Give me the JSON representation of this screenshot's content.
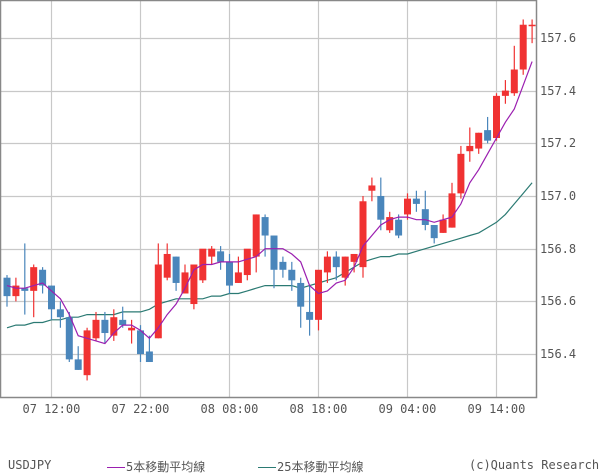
{
  "chart_data": {
    "type": "candlestick",
    "title": "USDJPY",
    "symbol": "USDJPY",
    "xlabel": "",
    "ylabel": "",
    "ylim": [
      156.22,
      157.74
    ],
    "y_ticks": [
      156.4,
      156.6,
      156.8,
      157.0,
      157.2,
      157.4,
      157.6
    ],
    "y_tick_labels": [
      "156.4",
      "156.6",
      "156.8",
      "157.0",
      "157.2",
      "157.4",
      "157.6"
    ],
    "x_ticks": [
      {
        "index": 5,
        "label": "07 12:00"
      },
      {
        "index": 15,
        "label": "07 22:00"
      },
      {
        "index": 25,
        "label": "08 08:00"
      },
      {
        "index": 35,
        "label": "08 18:00"
      },
      {
        "index": 45,
        "label": "09 04:00"
      },
      {
        "index": 55,
        "label": "09 14:00"
      }
    ],
    "grid": true,
    "legend_position": "bottom",
    "colors": {
      "up": "#f03232",
      "down": "#4a86bb",
      "ma5": "#9b1fb0",
      "ma25": "#2b7a73",
      "grid": "#c8c8c8",
      "frame": "#888888"
    },
    "candles": [
      [
        156.69,
        156.7,
        156.58,
        156.62
      ],
      [
        156.62,
        156.69,
        156.6,
        156.66
      ],
      [
        156.65,
        156.82,
        156.55,
        156.64
      ],
      [
        156.64,
        156.74,
        156.54,
        156.73
      ],
      [
        156.72,
        156.73,
        156.63,
        156.66
      ],
      [
        156.66,
        156.66,
        156.53,
        156.57
      ],
      [
        156.57,
        156.6,
        156.5,
        156.54
      ],
      [
        156.54,
        156.56,
        156.37,
        156.38
      ],
      [
        156.38,
        156.43,
        156.34,
        156.34
      ],
      [
        156.32,
        156.5,
        156.3,
        156.49
      ],
      [
        156.46,
        156.56,
        156.45,
        156.53
      ],
      [
        156.53,
        156.56,
        156.44,
        156.48
      ],
      [
        156.47,
        156.57,
        156.45,
        156.54
      ],
      [
        156.53,
        156.58,
        156.5,
        156.51
      ],
      [
        156.49,
        156.53,
        156.44,
        156.5
      ],
      [
        156.49,
        156.51,
        156.37,
        156.4
      ],
      [
        156.41,
        156.47,
        156.37,
        156.37
      ],
      [
        156.46,
        156.82,
        156.46,
        156.74
      ],
      [
        156.69,
        156.82,
        156.68,
        156.78
      ],
      [
        156.77,
        156.77,
        156.64,
        156.67
      ],
      [
        156.63,
        156.74,
        156.63,
        156.71
      ],
      [
        156.59,
        156.71,
        156.57,
        156.74
      ],
      [
        156.68,
        156.74,
        156.67,
        156.8
      ],
      [
        156.77,
        156.81,
        156.74,
        156.8
      ],
      [
        156.79,
        156.81,
        156.72,
        156.75
      ],
      [
        156.75,
        156.78,
        156.63,
        156.66
      ],
      [
        156.67,
        156.77,
        156.67,
        156.71
      ],
      [
        156.7,
        156.77,
        156.68,
        156.8
      ],
      [
        156.77,
        156.93,
        156.71,
        156.93
      ],
      [
        156.92,
        156.93,
        156.77,
        156.85
      ],
      [
        156.85,
        156.85,
        156.65,
        156.72
      ],
      [
        156.75,
        156.77,
        156.69,
        156.72
      ],
      [
        156.72,
        156.75,
        156.64,
        156.68
      ],
      [
        156.67,
        156.69,
        156.5,
        156.58
      ],
      [
        156.56,
        156.66,
        156.47,
        156.53
      ],
      [
        156.53,
        156.66,
        156.49,
        156.72
      ],
      [
        156.71,
        156.79,
        156.67,
        156.77
      ],
      [
        156.77,
        156.79,
        156.68,
        156.73
      ],
      [
        156.69,
        156.77,
        156.66,
        156.77
      ],
      [
        156.75,
        156.78,
        156.71,
        156.78
      ],
      [
        156.73,
        157.0,
        156.69,
        156.98
      ],
      [
        157.02,
        157.07,
        156.98,
        157.04
      ],
      [
        157.0,
        157.07,
        156.87,
        156.91
      ],
      [
        156.87,
        156.94,
        156.86,
        156.92
      ],
      [
        156.91,
        156.93,
        156.84,
        156.85
      ],
      [
        156.93,
        157.01,
        156.91,
        156.99
      ],
      [
        156.99,
        157.02,
        156.94,
        156.97
      ],
      [
        156.95,
        157.02,
        156.87,
        156.89
      ],
      [
        156.89,
        156.89,
        156.82,
        156.84
      ],
      [
        156.86,
        156.93,
        156.86,
        156.91
      ],
      [
        156.88,
        157.05,
        156.88,
        157.01
      ],
      [
        157.01,
        157.19,
        156.99,
        157.16
      ],
      [
        157.17,
        157.26,
        157.13,
        157.19
      ],
      [
        157.18,
        157.24,
        157.16,
        157.24
      ],
      [
        157.25,
        157.3,
        157.2,
        157.21
      ],
      [
        157.22,
        157.39,
        157.21,
        157.38
      ],
      [
        157.38,
        157.44,
        157.35,
        157.4
      ],
      [
        157.39,
        157.57,
        157.38,
        157.48
      ],
      [
        157.48,
        157.67,
        157.46,
        157.65
      ],
      [
        157.65,
        157.67,
        157.58,
        157.65
      ]
    ],
    "series": [
      {
        "name": "5本移動平均線",
        "values": [
          156.66,
          156.65,
          156.65,
          156.66,
          156.67,
          156.64,
          156.61,
          156.55,
          156.47,
          156.46,
          156.45,
          156.44,
          156.48,
          156.51,
          156.51,
          156.49,
          156.46,
          156.5,
          156.55,
          156.59,
          156.65,
          156.72,
          156.74,
          156.74,
          156.75,
          156.75,
          156.75,
          156.76,
          156.77,
          156.8,
          156.8,
          156.8,
          156.78,
          156.75,
          156.66,
          156.63,
          156.64,
          156.67,
          156.68,
          156.73,
          156.81,
          156.85,
          156.89,
          156.91,
          156.92,
          156.92,
          156.91,
          156.91,
          156.9,
          156.91,
          156.92,
          156.97,
          157.05,
          157.1,
          157.16,
          157.22,
          157.28,
          157.33,
          157.42,
          157.51
        ]
      },
      {
        "name": "25本移動平均線",
        "values": [
          156.5,
          156.51,
          156.51,
          156.52,
          156.52,
          156.53,
          156.53,
          156.54,
          156.54,
          156.55,
          156.55,
          156.55,
          156.55,
          156.56,
          156.56,
          156.56,
          156.57,
          156.59,
          156.6,
          156.61,
          156.61,
          156.61,
          156.61,
          156.62,
          156.62,
          156.63,
          156.63,
          156.64,
          156.65,
          156.66,
          156.66,
          156.66,
          156.66,
          156.65,
          156.66,
          156.67,
          156.68,
          156.69,
          156.71,
          156.73,
          156.75,
          156.76,
          156.77,
          156.77,
          156.78,
          156.78,
          156.79,
          156.8,
          156.81,
          156.82,
          156.83,
          156.84,
          156.85,
          156.86,
          156.88,
          156.9,
          156.93,
          156.97,
          157.01,
          157.05
        ]
      }
    ]
  },
  "legend": {
    "symbol": "USDJPY",
    "ma5_label": "5本移動平均線",
    "ma25_label": "25本移動平均線",
    "copyright": "(c)Quants Research"
  }
}
